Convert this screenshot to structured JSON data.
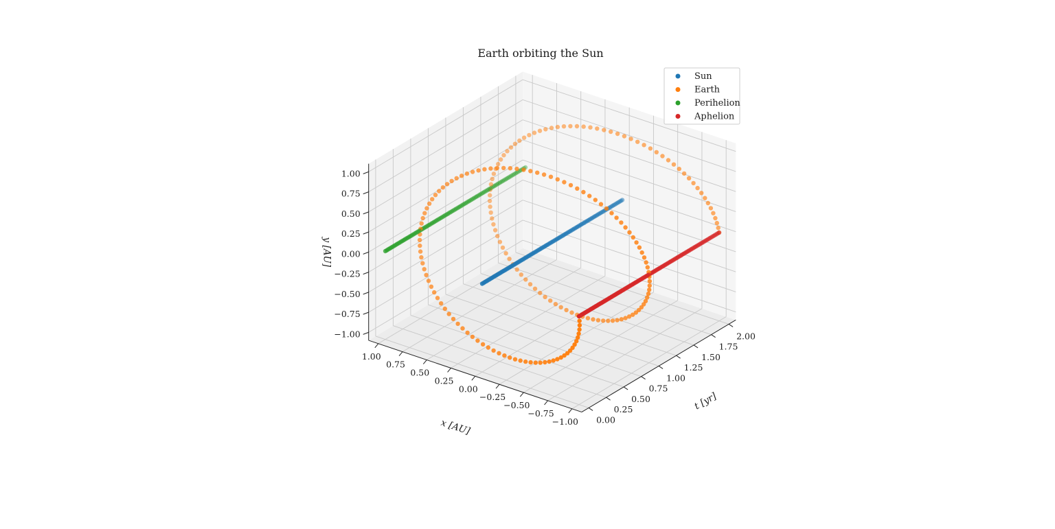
{
  "chart_data": {
    "type": "scatter",
    "projection": "3d",
    "title": "Earth orbiting the Sun",
    "axes": {
      "x": {
        "label": "x [AU]",
        "range": [
          -1.0,
          1.0
        ],
        "ticks": [
          "−1.00",
          "−0.75",
          "−0.50",
          "−0.25",
          "0.00",
          "0.25",
          "0.50",
          "0.75",
          "1.00"
        ],
        "tick_values": [
          -1.0,
          -0.75,
          -0.5,
          -0.25,
          0.0,
          0.25,
          0.5,
          0.75,
          1.0
        ]
      },
      "y": {
        "label": "y [AU]",
        "range": [
          -1.0,
          1.0
        ],
        "ticks": [
          "−1.00",
          "−0.75",
          "−0.50",
          "−0.25",
          "0.00",
          "0.25",
          "0.50",
          "0.75",
          "1.00"
        ],
        "tick_values": [
          -1.0,
          -0.75,
          -0.5,
          -0.25,
          0.0,
          0.25,
          0.5,
          0.75,
          1.0
        ]
      },
      "t": {
        "label": "t [yr]",
        "range": [
          0.0,
          2.0
        ],
        "ticks": [
          "0.00",
          "0.25",
          "0.50",
          "0.75",
          "1.00",
          "1.25",
          "1.50",
          "1.75",
          "2.00"
        ],
        "tick_values": [
          0.0,
          0.25,
          0.5,
          0.75,
          1.0,
          1.25,
          1.5,
          1.75,
          2.0
        ]
      }
    },
    "grid": true,
    "legend_position": "top-right",
    "series": [
      {
        "name": "Sun",
        "color": "#1f77b4",
        "kind": "constant",
        "x": 0.0,
        "y": 0.0,
        "t_range": [
          0.0,
          2.0
        ],
        "n_points": 100
      },
      {
        "name": "Earth",
        "color": "#ff7f0e",
        "kind": "orbit",
        "radius": 1.0,
        "period": 1.0,
        "phase_start": 3.14159,
        "t_range": [
          0.0,
          2.0
        ],
        "n_points": 200
      },
      {
        "name": "Perihelion",
        "color": "#2ca02c",
        "kind": "constant",
        "x": 1.0,
        "y": 0.0,
        "t_range": [
          0.0,
          2.0
        ],
        "n_points": 100
      },
      {
        "name": "Aphelion",
        "color": "#d62728",
        "kind": "constant",
        "x": -1.0,
        "y": 0.0,
        "t_range": [
          0.0,
          2.0
        ],
        "n_points": 100
      }
    ]
  }
}
